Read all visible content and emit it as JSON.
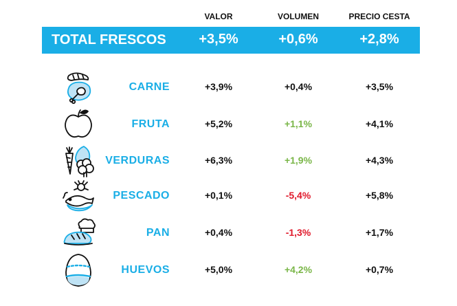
{
  "headers": {
    "valor": "VALOR",
    "volumen": "VOLUMEN",
    "precio": "PRECIO CESTA"
  },
  "total": {
    "label": "TOTAL FRESCOS",
    "valor": "+3,5%",
    "volumen": "+0,6%",
    "precio": "+2,8%"
  },
  "colors": {
    "accent": "#1aaee6",
    "green": "#7ab648",
    "red": "#e0192b",
    "text": "#111111"
  },
  "rows": [
    {
      "label": "CARNE",
      "icon": "meat-icon",
      "valor": "+3,9%",
      "volumen": "+0,4%",
      "volumen_color": "#111111",
      "precio": "+3,5%"
    },
    {
      "label": "FRUTA",
      "icon": "apple-icon",
      "valor": "+5,2%",
      "volumen": "+1,1%",
      "volumen_color": "#7ab648",
      "precio": "+4,1%"
    },
    {
      "label": "VERDURAS",
      "icon": "vegetables-icon",
      "valor": "+6,3%",
      "volumen": "+1,9%",
      "volumen_color": "#7ab648",
      "precio": "+4,3%"
    },
    {
      "label": "PESCADO",
      "icon": "fish-icon",
      "valor": "+0,1%",
      "volumen": "-5,4%",
      "volumen_color": "#e0192b",
      "precio": "+5,8%"
    },
    {
      "label": "PAN",
      "icon": "bread-icon",
      "valor": "+0,4%",
      "volumen": "-1,3%",
      "volumen_color": "#e0192b",
      "precio": "+1,7%"
    },
    {
      "label": "HUEVOS",
      "icon": "egg-icon",
      "valor": "+5,0%",
      "volumen": "+4,2%",
      "volumen_color": "#7ab648",
      "precio": "+0,7%"
    }
  ]
}
